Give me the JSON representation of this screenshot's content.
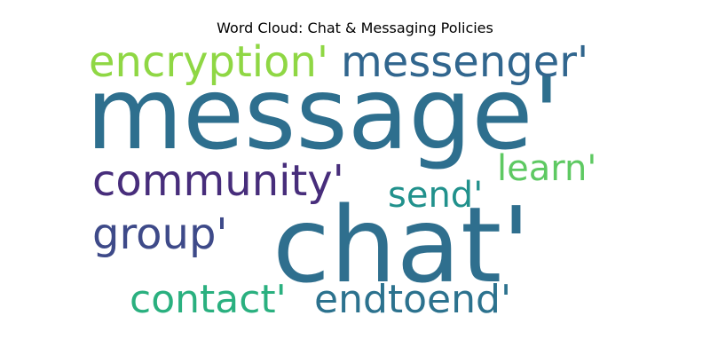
{
  "chart_data": {
    "type": "wordcloud",
    "title": "Word Cloud: Chat & Messaging Policies",
    "background": "#ffffff",
    "words": [
      {
        "text": "message'",
        "weight": 1.0,
        "color": "#2e6f8e"
      },
      {
        "text": "chat'",
        "weight": 0.95,
        "color": "#2f6f8e"
      },
      {
        "text": "messenger'",
        "weight": 0.42,
        "color": "#31668e"
      },
      {
        "text": "encryption'",
        "weight": 0.42,
        "color": "#8fd744"
      },
      {
        "text": "community'",
        "weight": 0.4,
        "color": "#472d7b"
      },
      {
        "text": "learn'",
        "weight": 0.34,
        "color": "#5ec962"
      },
      {
        "text": "send'",
        "weight": 0.34,
        "color": "#21918c"
      },
      {
        "text": "group'",
        "weight": 0.38,
        "color": "#3e4a89"
      },
      {
        "text": "contact'",
        "weight": 0.4,
        "color": "#2ab07f"
      },
      {
        "text": "endtoend'",
        "weight": 0.4,
        "color": "#2c728e"
      }
    ]
  }
}
